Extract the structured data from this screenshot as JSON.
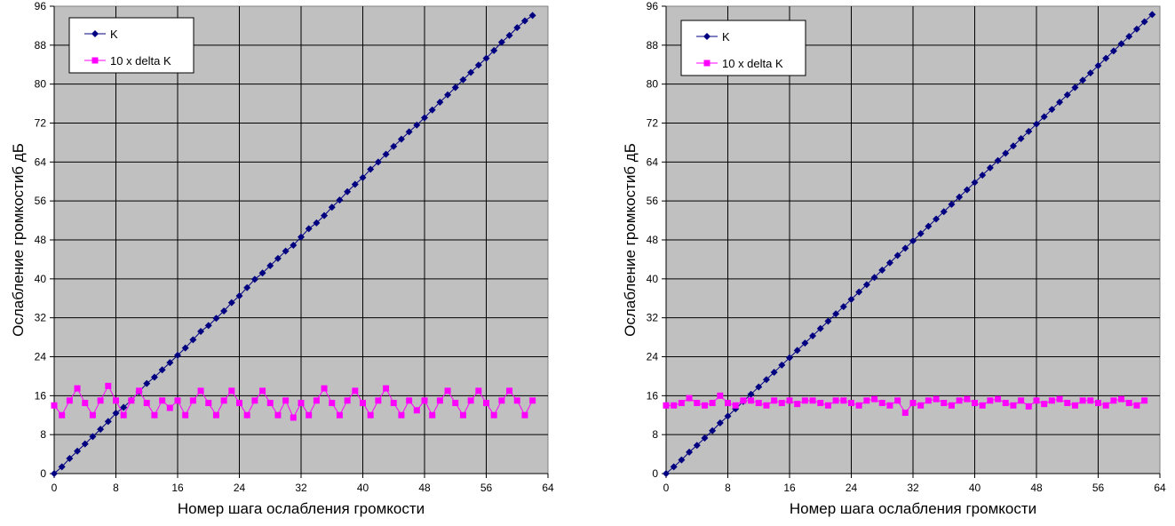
{
  "chart_data": [
    {
      "type": "line",
      "xlabel": "Номер шага ослабления громкости",
      "ylabel": "Ослабление громкостиб дБ",
      "xlim": [
        0,
        64
      ],
      "ylim": [
        0,
        96
      ],
      "xticks": [
        "0",
        "8",
        "16",
        "24",
        "32",
        "40",
        "48",
        "56",
        "64"
      ],
      "yticks": [
        "0",
        "8",
        "16",
        "24",
        "32",
        "40",
        "48",
        "56",
        "64",
        "72",
        "80",
        "88",
        "96"
      ],
      "grid": true,
      "legend_position": "top-left",
      "plot_background": "#c0c0c0",
      "series": [
        {
          "name": "K",
          "color": "#000080",
          "marker": "diamond",
          "x": [
            0,
            1,
            2,
            3,
            4,
            5,
            6,
            7,
            8,
            9,
            10,
            11,
            12,
            13,
            14,
            15,
            16,
            17,
            18,
            19,
            20,
            21,
            22,
            23,
            24,
            25,
            26,
            27,
            28,
            29,
            30,
            31,
            32,
            33,
            34,
            35,
            36,
            37,
            38,
            39,
            40,
            41,
            42,
            43,
            44,
            45,
            46,
            47,
            48,
            49,
            50,
            51,
            52,
            53,
            54,
            55,
            56,
            57,
            58,
            59,
            60,
            61,
            62
          ],
          "y": [
            0,
            1.4,
            3.1,
            4.6,
            6.1,
            7.6,
            9.1,
            10.7,
            12.4,
            13.6,
            15.1,
            16.8,
            18.5,
            19.8,
            21.3,
            22.8,
            24.3,
            25.8,
            27.5,
            29.2,
            30.4,
            31.9,
            33.4,
            35.1,
            36.5,
            38.2,
            39.9,
            41.2,
            42.7,
            44.2,
            45.7,
            46.9,
            48.6,
            50.3,
            51.5,
            53,
            54.7,
            56.2,
            57.9,
            59.4,
            60.8,
            62.5,
            64,
            65.6,
            67.2,
            68.7,
            70.2,
            71.6,
            73.1,
            74.7,
            76.3,
            77.8,
            79.3,
            80.9,
            82.4,
            83.9,
            85.3,
            86.9,
            88.6,
            90,
            91.6,
            93,
            94.1
          ]
        },
        {
          "name": "10 x delta K",
          "color": "#ff00ff",
          "marker": "square",
          "x": [
            0,
            1,
            2,
            3,
            4,
            5,
            6,
            7,
            8,
            9,
            10,
            11,
            12,
            13,
            14,
            15,
            16,
            17,
            18,
            19,
            20,
            21,
            22,
            23,
            24,
            25,
            26,
            27,
            28,
            29,
            30,
            31,
            32,
            33,
            34,
            35,
            36,
            37,
            38,
            39,
            40,
            41,
            42,
            43,
            44,
            45,
            46,
            47,
            48,
            49,
            50,
            51,
            52,
            53,
            54,
            55,
            56,
            57,
            58,
            59,
            60,
            61,
            62
          ],
          "y": [
            14,
            12,
            15,
            17.5,
            14.5,
            12,
            15,
            18,
            15,
            12,
            15,
            17,
            14.5,
            12,
            15,
            13.5,
            15,
            12,
            15,
            17,
            14.5,
            12,
            15,
            17,
            14.5,
            12,
            15,
            17,
            14.5,
            12,
            15,
            11.5,
            14.5,
            12,
            15,
            17.5,
            14.5,
            12,
            15,
            17,
            14.5,
            12,
            15,
            17.5,
            14.5,
            12,
            15,
            13,
            15,
            12,
            15,
            17,
            14.5,
            12,
            15,
            17,
            14.5,
            12,
            15,
            17,
            15,
            12,
            15
          ]
        }
      ]
    },
    {
      "type": "line",
      "xlabel": "Номер шага ослабления громкости",
      "ylabel": "Ослабление громкостиб дБ",
      "xlim": [
        0,
        64
      ],
      "ylim": [
        0,
        96
      ],
      "xticks": [
        "0",
        "8",
        "16",
        "24",
        "32",
        "40",
        "48",
        "56",
        "64"
      ],
      "yticks": [
        "0",
        "8",
        "16",
        "24",
        "32",
        "40",
        "48",
        "56",
        "64",
        "72",
        "80",
        "88",
        "96"
      ],
      "grid": true,
      "legend_position": "top-left",
      "plot_background": "#c0c0c0",
      "series": [
        {
          "name": "K",
          "color": "#000080",
          "marker": "diamond",
          "x": [
            0,
            1,
            2,
            3,
            4,
            5,
            6,
            7,
            8,
            9,
            10,
            11,
            12,
            13,
            14,
            15,
            16,
            17,
            18,
            19,
            20,
            21,
            22,
            23,
            24,
            25,
            26,
            27,
            28,
            29,
            30,
            31,
            32,
            33,
            34,
            35,
            36,
            37,
            38,
            39,
            40,
            41,
            42,
            43,
            44,
            45,
            46,
            47,
            48,
            49,
            50,
            51,
            52,
            53,
            54,
            55,
            56,
            57,
            58,
            59,
            60,
            61,
            62,
            63
          ],
          "y": [
            0,
            1.4,
            2.8,
            4.4,
            5.8,
            7.3,
            8.8,
            10.4,
            11.8,
            13.3,
            14.8,
            16.3,
            17.8,
            19.3,
            20.8,
            22.3,
            23.8,
            25.3,
            26.8,
            28.3,
            29.8,
            31.3,
            32.8,
            34.3,
            35.8,
            37.3,
            38.8,
            40.3,
            41.8,
            43.3,
            44.8,
            46.3,
            47.8,
            49.3,
            50.8,
            52.3,
            53.8,
            55.3,
            56.8,
            58.3,
            59.8,
            61.3,
            62.8,
            64.3,
            65.8,
            67.3,
            68.8,
            70.3,
            71.8,
            73.3,
            74.8,
            76.3,
            77.8,
            79.3,
            80.8,
            82.3,
            83.8,
            85.3,
            86.8,
            88.3,
            89.8,
            91.3,
            92.8,
            94.3
          ]
        },
        {
          "name": "10 x delta K",
          "color": "#ff00ff",
          "marker": "square",
          "x": [
            0,
            1,
            2,
            3,
            4,
            5,
            6,
            7,
            8,
            9,
            10,
            11,
            12,
            13,
            14,
            15,
            16,
            17,
            18,
            19,
            20,
            21,
            22,
            23,
            24,
            25,
            26,
            27,
            28,
            29,
            30,
            31,
            32,
            33,
            34,
            35,
            36,
            37,
            38,
            39,
            40,
            41,
            42,
            43,
            44,
            45,
            46,
            47,
            48,
            49,
            50,
            51,
            52,
            53,
            54,
            55,
            56,
            57,
            58,
            59,
            60,
            61,
            62
          ],
          "y": [
            14,
            14,
            14.5,
            15.5,
            14.5,
            14,
            14.5,
            16,
            14.5,
            14,
            15,
            15,
            14.5,
            14,
            15,
            14.5,
            15,
            14.3,
            15,
            15,
            14.5,
            14,
            15,
            15,
            14.5,
            14,
            15,
            15.3,
            14.5,
            14,
            15,
            12.5,
            14.5,
            14,
            15,
            15.3,
            14.5,
            14,
            15,
            15.3,
            14.5,
            14,
            15,
            15.3,
            14.5,
            14,
            15,
            13.8,
            15,
            14.3,
            15,
            15.3,
            14.5,
            14,
            15,
            15,
            14.5,
            14,
            15,
            15.3,
            14.5,
            14,
            15
          ]
        }
      ]
    }
  ]
}
